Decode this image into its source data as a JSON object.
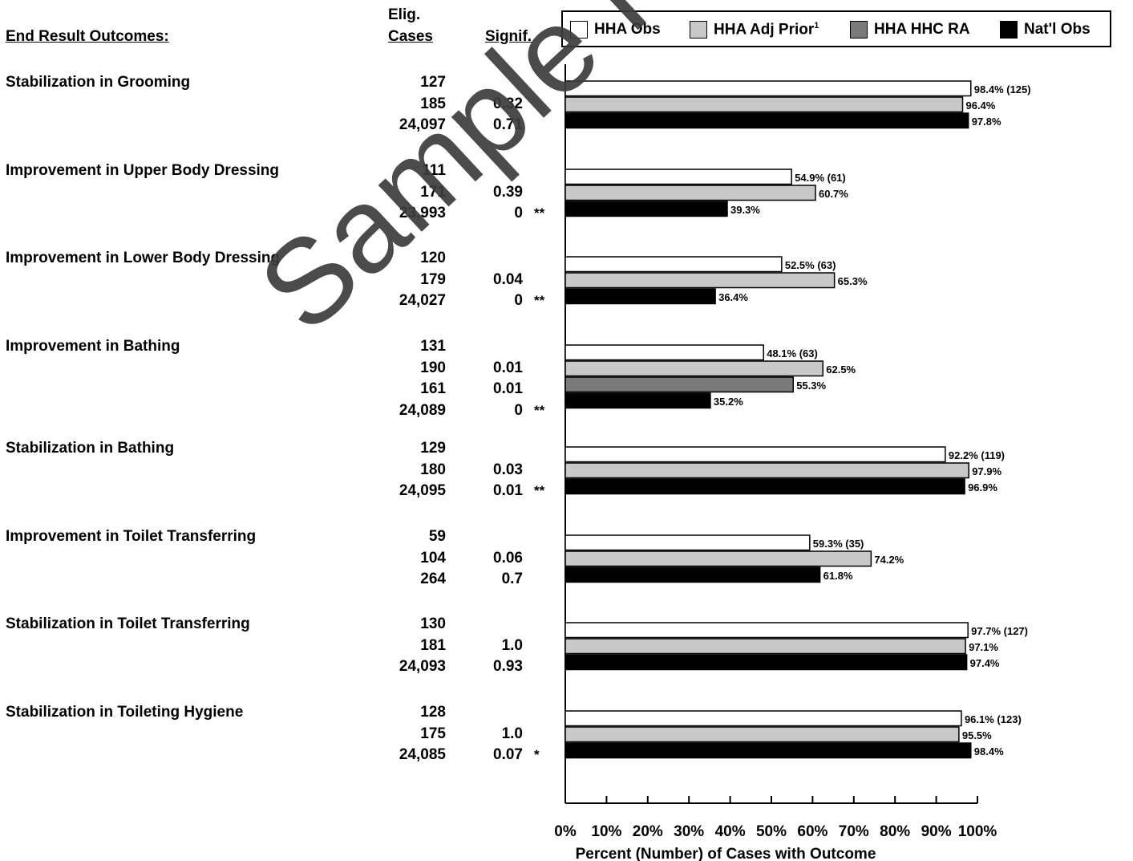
{
  "header": {
    "outcomes_label": "End Result Outcomes:",
    "elig_line1": "Elig.",
    "elig_line2": "Cases",
    "signif_label": "Signif."
  },
  "legend": [
    {
      "label": "HHA Obs",
      "sup": "",
      "color": "#ffffff"
    },
    {
      "label": "HHA Adj Prior",
      "sup": "1",
      "color": "#c8c8c8"
    },
    {
      "label": "HHA HHC RA",
      "sup": "",
      "color": "#7a7a7a"
    },
    {
      "label": "Nat'l Obs",
      "sup": "",
      "color": "#000000"
    }
  ],
  "watermark": "Sample Report",
  "chart_data": {
    "type": "bar",
    "orientation": "horizontal",
    "xlabel": "Percent (Number) of Cases with Outcome",
    "xlim": [
      0,
      100
    ],
    "xticks": [
      "0%",
      "10%",
      "20%",
      "30%",
      "40%",
      "50%",
      "60%",
      "70%",
      "80%",
      "90%",
      "100%"
    ],
    "series_colors": {
      "HHA Obs": "#ffffff",
      "HHA Adj Prior": "#c8c8c8",
      "HHA HHC RA": "#7a7a7a",
      "Nat'l Obs": "#000000"
    },
    "groups": [
      {
        "name": "Stabilization in Grooming",
        "rows": [
          {
            "series": "HHA Obs",
            "elig": "127",
            "signif": "",
            "star": "",
            "value": 98.4,
            "label": "98.4% (125)"
          },
          {
            "series": "HHA Adj Prior",
            "elig": "185",
            "signif": "0.32",
            "star": "",
            "value": 96.4,
            "label": "96.4%"
          },
          {
            "series": "Nat'l Obs",
            "elig": "24,097",
            "signif": "0.71",
            "star": "",
            "value": 97.8,
            "label": "97.8%"
          }
        ]
      },
      {
        "name": "Improvement in Upper Body Dressing",
        "rows": [
          {
            "series": "HHA Obs",
            "elig": "111",
            "signif": "",
            "star": "",
            "value": 54.9,
            "label": "54.9% (61)"
          },
          {
            "series": "HHA Adj Prior",
            "elig": "171",
            "signif": "0.39",
            "star": "",
            "value": 60.7,
            "label": "60.7%"
          },
          {
            "series": "Nat'l Obs",
            "elig": "23,993",
            "signif": "0",
            "star": "**",
            "value": 39.3,
            "label": "39.3%"
          }
        ]
      },
      {
        "name": "Improvement in Lower Body Dressing",
        "rows": [
          {
            "series": "HHA Obs",
            "elig": "120",
            "signif": "",
            "star": "",
            "value": 52.5,
            "label": "52.5% (63)"
          },
          {
            "series": "HHA Adj Prior",
            "elig": "179",
            "signif": "0.04",
            "star": "",
            "value": 65.3,
            "label": "65.3%"
          },
          {
            "series": "Nat'l Obs",
            "elig": "24,027",
            "signif": "0",
            "star": "**",
            "value": 36.4,
            "label": "36.4%"
          }
        ]
      },
      {
        "name": "Improvement in Bathing",
        "rows": [
          {
            "series": "HHA Obs",
            "elig": "131",
            "signif": "",
            "star": "",
            "value": 48.1,
            "label": "48.1% (63)"
          },
          {
            "series": "HHA Adj Prior",
            "elig": "190",
            "signif": "0.01",
            "star": "",
            "value": 62.5,
            "label": "62.5%"
          },
          {
            "series": "HHA HHC RA",
            "elig": "161",
            "signif": "0.01",
            "star": "",
            "value": 55.3,
            "label": "55.3%"
          },
          {
            "series": "Nat'l Obs",
            "elig": "24,089",
            "signif": "0",
            "star": "**",
            "value": 35.2,
            "label": "35.2%"
          }
        ]
      },
      {
        "name": "Stabilization in Bathing",
        "rows": [
          {
            "series": "HHA Obs",
            "elig": "129",
            "signif": "",
            "star": "",
            "value": 92.2,
            "label": "92.2% (119)"
          },
          {
            "series": "HHA Adj Prior",
            "elig": "180",
            "signif": "0.03",
            "star": "",
            "value": 97.9,
            "label": "97.9%"
          },
          {
            "series": "Nat'l Obs",
            "elig": "24,095",
            "signif": "0.01",
            "star": "**",
            "value": 96.9,
            "label": "96.9%"
          }
        ]
      },
      {
        "name": "Improvement in Toilet Transferring",
        "rows": [
          {
            "series": "HHA Obs",
            "elig": "59",
            "signif": "",
            "star": "",
            "value": 59.3,
            "label": "59.3% (35)"
          },
          {
            "series": "HHA Adj Prior",
            "elig": "104",
            "signif": "0.06",
            "star": "",
            "value": 74.2,
            "label": "74.2%"
          },
          {
            "series": "Nat'l Obs",
            "elig": "264",
            "signif": "0.7",
            "star": "",
            "value": 61.8,
            "label": "61.8%"
          }
        ]
      },
      {
        "name": "Stabilization in Toilet Transferring",
        "rows": [
          {
            "series": "HHA Obs",
            "elig": "130",
            "signif": "",
            "star": "",
            "value": 97.7,
            "label": "97.7% (127)"
          },
          {
            "series": "HHA Adj Prior",
            "elig": "181",
            "signif": "1.0",
            "star": "",
            "value": 97.1,
            "label": "97.1%"
          },
          {
            "series": "Nat'l Obs",
            "elig": "24,093",
            "signif": "0.93",
            "star": "",
            "value": 97.4,
            "label": "97.4%"
          }
        ]
      },
      {
        "name": "Stabilization in Toileting Hygiene",
        "rows": [
          {
            "series": "HHA Obs",
            "elig": "128",
            "signif": "",
            "star": "",
            "value": 96.1,
            "label": "96.1% (123)"
          },
          {
            "series": "HHA Adj Prior",
            "elig": "175",
            "signif": "1.0",
            "star": "",
            "value": 95.5,
            "label": "95.5%"
          },
          {
            "series": "Nat'l Obs",
            "elig": "24,085",
            "signif": "0.07",
            "star": "*",
            "value": 98.4,
            "label": "98.4%"
          }
        ]
      }
    ]
  }
}
